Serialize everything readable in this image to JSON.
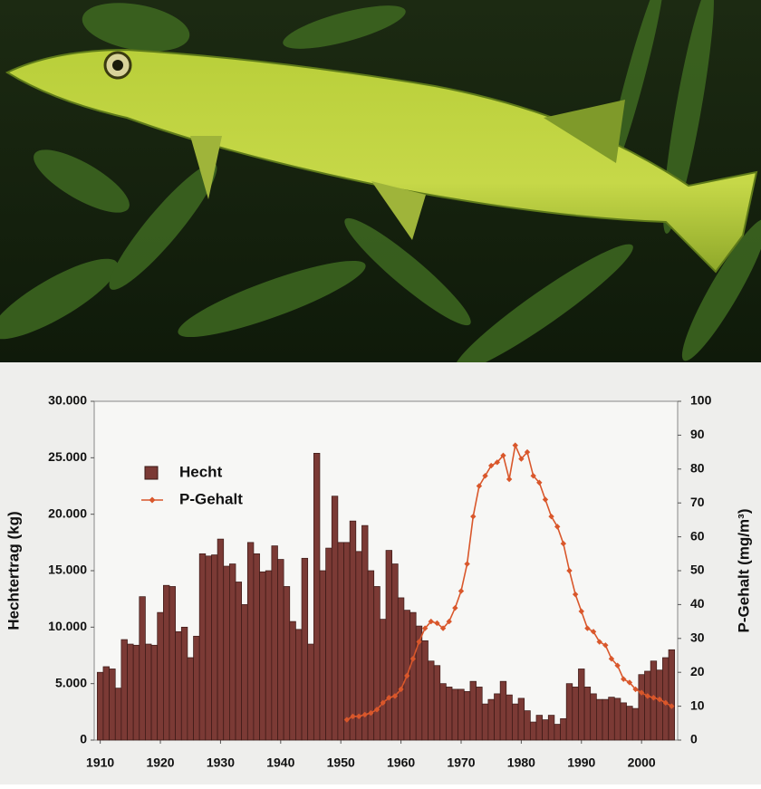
{
  "chart_data": {
    "type": "bar",
    "x": [
      1910,
      1911,
      1912,
      1913,
      1914,
      1915,
      1916,
      1917,
      1918,
      1919,
      1920,
      1921,
      1922,
      1923,
      1924,
      1925,
      1926,
      1927,
      1928,
      1929,
      1930,
      1931,
      1932,
      1933,
      1934,
      1935,
      1936,
      1937,
      1938,
      1939,
      1940,
      1941,
      1942,
      1943,
      1944,
      1945,
      1946,
      1947,
      1948,
      1949,
      1950,
      1951,
      1952,
      1953,
      1954,
      1955,
      1956,
      1957,
      1958,
      1959,
      1960,
      1961,
      1962,
      1963,
      1964,
      1965,
      1966,
      1967,
      1968,
      1969,
      1970,
      1971,
      1972,
      1973,
      1974,
      1975,
      1976,
      1977,
      1978,
      1979,
      1980,
      1981,
      1982,
      1983,
      1984,
      1985,
      1986,
      1987,
      1988,
      1989,
      1990,
      1991,
      1992,
      1993,
      1994,
      1995,
      1996,
      1997,
      1998,
      1999,
      2000,
      2001,
      2002,
      2003,
      2004,
      2005
    ],
    "xlim": [
      1909,
      2006
    ],
    "xticks": [
      1910,
      1920,
      1930,
      1940,
      1950,
      1960,
      1970,
      1980,
      1990,
      2000
    ],
    "ylabel": "Hechtertrag (kg)",
    "ylim": [
      0,
      30000
    ],
    "yticks": [
      {
        "value": 0,
        "label": "0"
      },
      {
        "value": 5000,
        "label": "5.000"
      },
      {
        "value": 10000,
        "label": "10.000"
      },
      {
        "value": 15000,
        "label": "15.000"
      },
      {
        "value": 20000,
        "label": "20.000"
      },
      {
        "value": 25000,
        "label": "25.000"
      },
      {
        "value": 30000,
        "label": "30.000"
      }
    ],
    "y2label": "P-Gehalt (mg/m³)",
    "y2lim": [
      0,
      100
    ],
    "y2ticks": [
      0,
      10,
      20,
      30,
      40,
      50,
      60,
      70,
      80,
      90,
      100
    ],
    "legend": "upper left",
    "series": [
      {
        "name": "Hecht",
        "type": "bar",
        "color": "#7b3a35",
        "values": [
          6000,
          6500,
          6300,
          4600,
          8900,
          8500,
          8400,
          12700,
          8500,
          8400,
          11300,
          13700,
          13600,
          9600,
          10000,
          7300,
          9200,
          16500,
          16300,
          16400,
          17800,
          15400,
          15600,
          14000,
          12000,
          17500,
          16500,
          14900,
          15000,
          17200,
          16000,
          13600,
          10500,
          9800,
          16100,
          8500,
          25400,
          15000,
          17000,
          21600,
          17500,
          17500,
          19400,
          16700,
          19000,
          15000,
          13600,
          10700,
          16800,
          15600,
          12600,
          11500,
          11300,
          10100,
          8800,
          7000,
          6600,
          5000,
          4700,
          4500,
          4500,
          4300,
          5200,
          4700,
          3200,
          3600,
          4100,
          5200,
          4000,
          3200,
          3700,
          2600,
          1600,
          2200,
          1800,
          2200,
          1400,
          1900,
          5000,
          4700,
          6300,
          4700,
          4100,
          3600,
          3600,
          3800,
          3700,
          3300,
          3000,
          2800,
          5800,
          6100,
          7000,
          6200,
          7300,
          8000
        ]
      },
      {
        "name": "P-Gehalt",
        "type": "line",
        "axis": "y2",
        "color": "#d9572b",
        "values": [
          null,
          null,
          null,
          null,
          null,
          null,
          null,
          null,
          null,
          null,
          null,
          null,
          null,
          null,
          null,
          null,
          null,
          null,
          null,
          null,
          null,
          null,
          null,
          null,
          null,
          null,
          null,
          null,
          null,
          null,
          null,
          null,
          null,
          null,
          null,
          null,
          null,
          null,
          null,
          null,
          null,
          6,
          7,
          7,
          7.5,
          8,
          9,
          11,
          12.5,
          13,
          15,
          19,
          24,
          29,
          33,
          35,
          34.5,
          33,
          35,
          39,
          44,
          52,
          66,
          75,
          78,
          81,
          82,
          84,
          77,
          87,
          83,
          85,
          78,
          76,
          71,
          66,
          63,
          58,
          50,
          43,
          38,
          33,
          32,
          29,
          28,
          24,
          22,
          18,
          17,
          15,
          14,
          13,
          12.5,
          12,
          11,
          10
        ]
      }
    ]
  }
}
